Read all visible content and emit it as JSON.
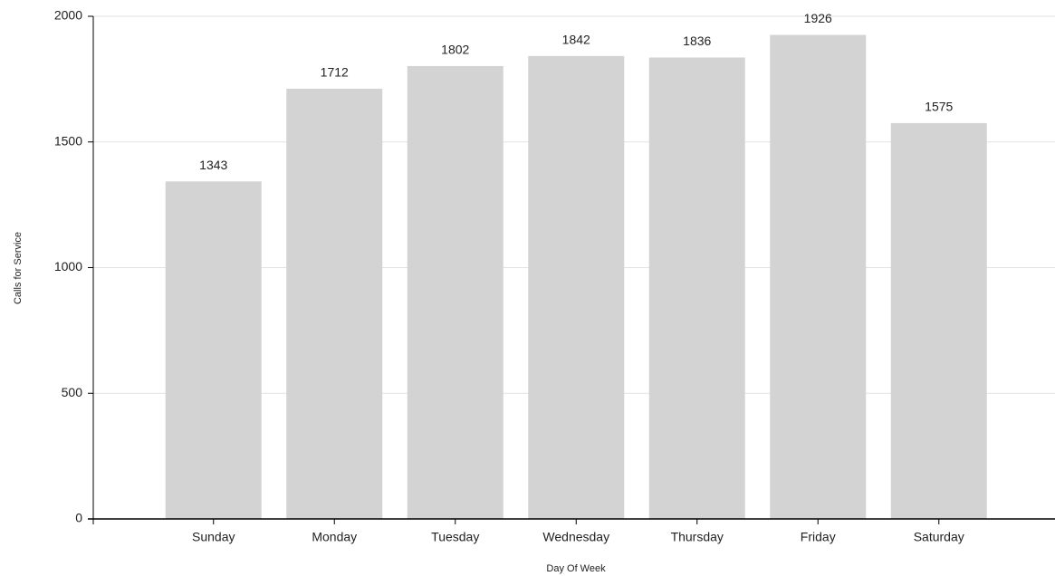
{
  "chart_data": {
    "type": "bar",
    "categories": [
      "Sunday",
      "Monday",
      "Tuesday",
      "Wednesday",
      "Thursday",
      "Friday",
      "Saturday"
    ],
    "values": [
      1343,
      1712,
      1802,
      1842,
      1836,
      1926,
      1575
    ],
    "color": "#d3d3d3",
    "xlabel": "Day Of Week",
    "ylabel": "Calls for Service",
    "ylim": [
      0,
      2000
    ],
    "yticks": [
      0,
      500,
      1000,
      1500,
      2000
    ],
    "grid": true
  }
}
